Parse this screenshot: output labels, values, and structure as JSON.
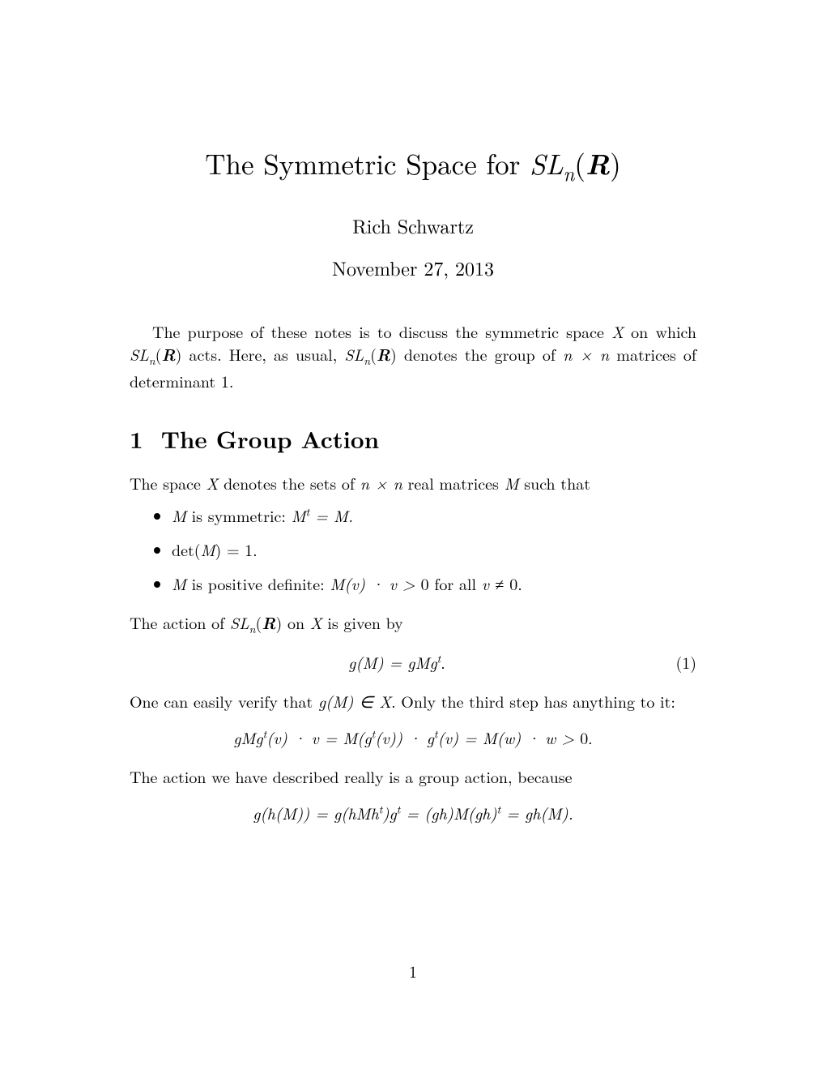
{
  "title_prefix": "The Symmetric Space for ",
  "title_group": "SL",
  "title_sub": "n",
  "title_field": "R",
  "author": "Rich Schwartz",
  "date": "November 27, 2013",
  "intro_part1": "The purpose of these notes is to discuss the symmetric space ",
  "intro_X": "X",
  "intro_part2": " on which ",
  "intro_part3": " acts. Here, as usual, ",
  "intro_part4": " denotes the group of ",
  "intro_nxn": "n × n",
  "intro_part5": " matrices of determinant 1.",
  "section1_number": "1",
  "section1_title": "The Group Action",
  "body1_part1": "The space ",
  "body1_X": "X",
  "body1_part2": " denotes the sets of ",
  "body1_nxn": "n × n",
  "body1_part3": " real matrices ",
  "body1_M": "M",
  "body1_part4": " such that",
  "bullet1_M": "M",
  "bullet1_text": " is symmetric: ",
  "bullet1_eq": "M",
  "bullet1_sup": "t",
  "bullet1_eq2": " = M.",
  "bullet2_det": "det(",
  "bullet2_M": "M",
  "bullet2_eq": ") = 1.",
  "bullet3_M": "M",
  "bullet3_text": " is positive definite: ",
  "bullet3_eq": "M(v) · v > ",
  "bullet3_zero": "0 for all ",
  "bullet3_v": "v ≠ ",
  "bullet3_end": "0.",
  "body2_part1": "The action of ",
  "body2_part2": " on ",
  "body2_X": "X",
  "body2_part3": " is given by",
  "eq1": "g(M) = gMg",
  "eq1_sup": "t",
  "eq1_period": ".",
  "eq1_number": "(1)",
  "body3_part1": "One can easily verify that ",
  "body3_gM": "g(M) ∈ X",
  "body3_part2": ". Only the third step has anything to it:",
  "eq2_part1": "gMg",
  "eq2_sup1": "t",
  "eq2_part2": "(v) · v = M(g",
  "eq2_sup2": "t",
  "eq2_part3": "(v)) · g",
  "eq2_sup3": "t",
  "eq2_part4": "(v) = M(w) · w > ",
  "eq2_zero": "0.",
  "body4": "The action we have described really is a group action, because",
  "eq3_part1": "g(h(M)) = g(hMh",
  "eq3_sup1": "t",
  "eq3_part2": ")g",
  "eq3_sup2": "t",
  "eq3_part3": " = (gh)M(gh)",
  "eq3_sup3": "t",
  "eq3_part4": " = gh(M).",
  "page_number": "1"
}
